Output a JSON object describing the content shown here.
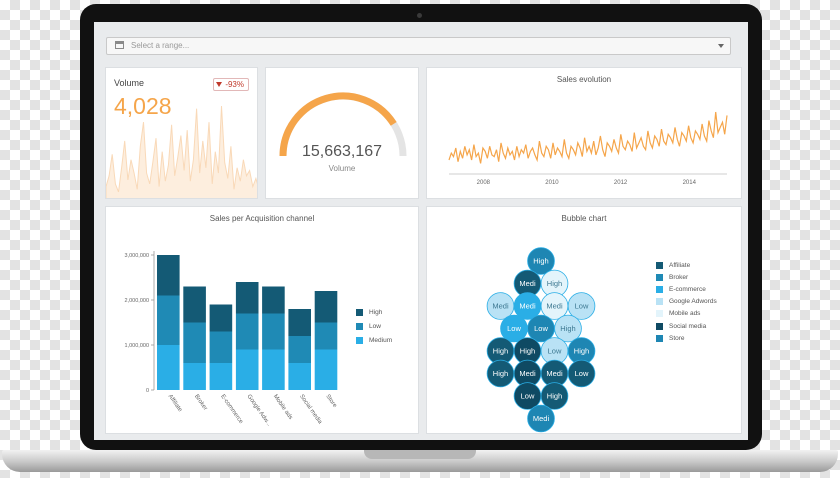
{
  "range_select": {
    "placeholder": "Select a range...",
    "icon": "calendar-icon"
  },
  "volume": {
    "label": "Volume",
    "value": "4,028",
    "delta": "-93%",
    "accent": "#f5a54a",
    "sparkline": [
      10,
      18,
      34,
      12,
      6,
      24,
      44,
      15,
      30,
      20,
      8,
      40,
      58,
      20,
      12,
      28,
      46,
      10,
      36,
      14,
      26,
      56,
      18,
      32,
      48,
      22,
      52,
      14,
      30,
      68,
      20,
      44,
      24,
      58,
      12,
      36,
      20,
      70,
      28,
      16,
      40,
      8,
      24,
      14,
      30,
      18,
      22,
      10,
      16,
      8
    ]
  },
  "gauge": {
    "value": "15,663,167",
    "label": "Volume",
    "fraction": 0.82,
    "accent": "#f5a54a"
  },
  "sales_evolution": {
    "title": "Sales evolution",
    "x_ticks": [
      "2008",
      "2010",
      "2012",
      "2014"
    ],
    "chart_data": {
      "type": "line",
      "x_range": [
        2007.0,
        2015.1
      ],
      "series": [
        {
          "values": [
            14,
            22,
            18,
            28,
            12,
            24,
            16,
            30,
            20,
            26,
            14,
            32,
            18,
            22,
            10,
            28,
            24,
            16,
            30,
            20,
            18,
            26,
            12,
            34,
            22,
            16,
            28,
            20,
            24,
            14,
            30,
            18,
            26,
            22,
            32,
            16,
            24,
            28,
            20,
            14,
            36,
            22,
            18,
            30,
            26,
            16,
            34,
            20,
            28,
            24,
            18,
            38,
            22,
            16,
            30,
            26,
            20,
            34,
            28,
            18,
            40,
            24,
            30,
            22,
            36,
            20,
            28,
            42,
            26,
            18,
            34,
            30,
            24,
            38,
            28,
            22,
            44,
            30,
            26,
            36,
            32,
            24,
            46,
            28,
            34,
            40,
            30,
            26,
            48,
            34,
            28,
            42,
            38,
            30,
            50,
            36,
            32,
            44,
            40,
            34,
            52,
            38,
            30,
            46,
            42,
            36,
            54,
            40,
            34,
            48,
            44,
            38,
            56,
            42,
            36,
            60,
            48,
            40,
            70,
            46,
            52,
            58,
            44,
            66
          ]
        }
      ]
    }
  },
  "acquisition": {
    "title": "Sales per Acquisition channel",
    "chart_data": {
      "type": "bar",
      "stacked": true,
      "categories": [
        "Affiliate",
        "Broker",
        "E-commerce",
        "Google Adw...",
        "Mobile ads",
        "Social media",
        "Store"
      ],
      "series": [
        {
          "name": "High",
          "color": "#145a75",
          "values": [
            900000,
            800000,
            600000,
            700000,
            600000,
            600000,
            700000
          ]
        },
        {
          "name": "Low",
          "color": "#1f8ab5",
          "values": [
            1100000,
            900000,
            700000,
            800000,
            800000,
            600000,
            600000
          ]
        },
        {
          "name": "Medium",
          "color": "#2aaee6",
          "values": [
            1000000,
            600000,
            600000,
            900000,
            900000,
            600000,
            900000
          ]
        }
      ],
      "yticks": [
        "0",
        "1,000,000",
        "2,000,000",
        "3,000,000"
      ],
      "ylim": [
        0,
        3000000
      ]
    }
  },
  "bubble": {
    "title": "Bubble chart",
    "legend": [
      {
        "name": "Affiliate",
        "color": "#145a75"
      },
      {
        "name": "Broker",
        "color": "#1f8ab5"
      },
      {
        "name": "E-commerce",
        "color": "#2aaee6"
      },
      {
        "name": "Google Adwords",
        "color": "#b9e2f5"
      },
      {
        "name": "Mobile ads",
        "color": "#e3f4fb"
      },
      {
        "name": "Social media",
        "color": "#0f4a63"
      },
      {
        "name": "Store",
        "color": "#1e86b3"
      }
    ],
    "chart_data": {
      "type": "bubble",
      "bubbles": [
        {
          "label": "High",
          "color": "#1e86b3"
        },
        {
          "label": "Medi",
          "color": "#145a75"
        },
        {
          "label": "High",
          "color": "#e3f4fb"
        },
        {
          "label": "Medi",
          "color": "#b9e2f5"
        },
        {
          "label": "Medi",
          "color": "#2aaee6"
        },
        {
          "label": "Medi",
          "color": "#e3f4fb"
        },
        {
          "label": "Low",
          "color": "#b9e2f5"
        },
        {
          "label": "Low",
          "color": "#2aaee6"
        },
        {
          "label": "Low",
          "color": "#1e86b3"
        },
        {
          "label": "High",
          "color": "#b9e2f5"
        },
        {
          "label": "High",
          "color": "#145a75"
        },
        {
          "label": "High",
          "color": "#0f4a63"
        },
        {
          "label": "Low",
          "color": "#b9e2f5"
        },
        {
          "label": "High",
          "color": "#1e86b3"
        },
        {
          "label": "High",
          "color": "#145a75"
        },
        {
          "label": "Medi",
          "color": "#0f4a63"
        },
        {
          "label": "Medi",
          "color": "#145a75"
        },
        {
          "label": "Low",
          "color": "#145a75"
        },
        {
          "label": "Low",
          "color": "#0f4a63"
        },
        {
          "label": "High",
          "color": "#145a75"
        },
        {
          "label": "Medi",
          "color": "#1e86b3"
        }
      ]
    }
  }
}
